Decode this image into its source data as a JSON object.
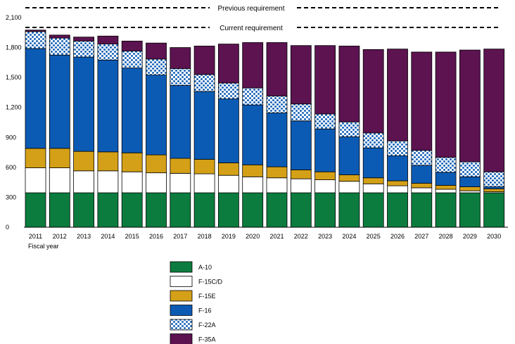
{
  "chart_data": {
    "type": "bar",
    "stacked": true,
    "categories": [
      "2011",
      "2012",
      "2013",
      "2014",
      "2015",
      "2016",
      "2017",
      "2018",
      "2019",
      "2020",
      "2021",
      "2022",
      "2023",
      "2024",
      "2025",
      "2026",
      "2027",
      "2028",
      "2029",
      "2030"
    ],
    "xlabel": "Fiscal year",
    "ylim": [
      0,
      2100
    ],
    "yticks": [
      0,
      300,
      600,
      900,
      1200,
      1500,
      1800,
      2100
    ],
    "ytick_labels": [
      "0",
      "300",
      "600",
      "900",
      "1,200",
      "1,500",
      "1,800",
      "2,100"
    ],
    "reference_lines": [
      {
        "label": "Previous requirement",
        "value": 2200
      },
      {
        "label": "Current requirement",
        "value": 2000
      }
    ],
    "series": [
      {
        "name": "A-10",
        "color": "#0b7c3e",
        "pattern": "solid",
        "values": [
          345,
          345,
          345,
          345,
          345,
          345,
          345,
          345,
          345,
          345,
          345,
          345,
          345,
          345,
          345,
          345,
          345,
          345,
          345,
          345
        ]
      },
      {
        "name": "F-15C/D",
        "color": "#ffffff",
        "pattern": "solid",
        "values": [
          250,
          250,
          220,
          220,
          210,
          200,
          195,
          190,
          175,
          160,
          150,
          140,
          130,
          115,
          90,
          70,
          50,
          35,
          20,
          10
        ]
      },
      {
        "name": "F-15E",
        "color": "#d4a017",
        "pattern": "solid",
        "values": [
          195,
          195,
          195,
          190,
          190,
          180,
          150,
          145,
          125,
          120,
          110,
          90,
          80,
          65,
          60,
          50,
          45,
          40,
          40,
          30
        ]
      },
      {
        "name": "F-16",
        "color": "#0b5bb5",
        "pattern": "solid",
        "values": [
          1000,
          935,
          945,
          920,
          850,
          800,
          730,
          680,
          640,
          600,
          540,
          490,
          430,
          380,
          300,
          250,
          180,
          130,
          100,
          20
        ]
      },
      {
        "name": "F-22A",
        "color": "#ffffff",
        "pattern": "dots",
        "values": [
          170,
          170,
          160,
          160,
          170,
          160,
          170,
          170,
          160,
          170,
          170,
          170,
          150,
          150,
          150,
          150,
          150,
          150,
          150,
          150
        ]
      },
      {
        "name": "F-35A",
        "color": "#5c1350",
        "pattern": "solid",
        "values": [
          15,
          30,
          40,
          80,
          100,
          160,
          210,
          285,
          390,
          455,
          535,
          585,
          685,
          760,
          835,
          920,
          985,
          1055,
          1120,
          1230
        ]
      }
    ]
  }
}
